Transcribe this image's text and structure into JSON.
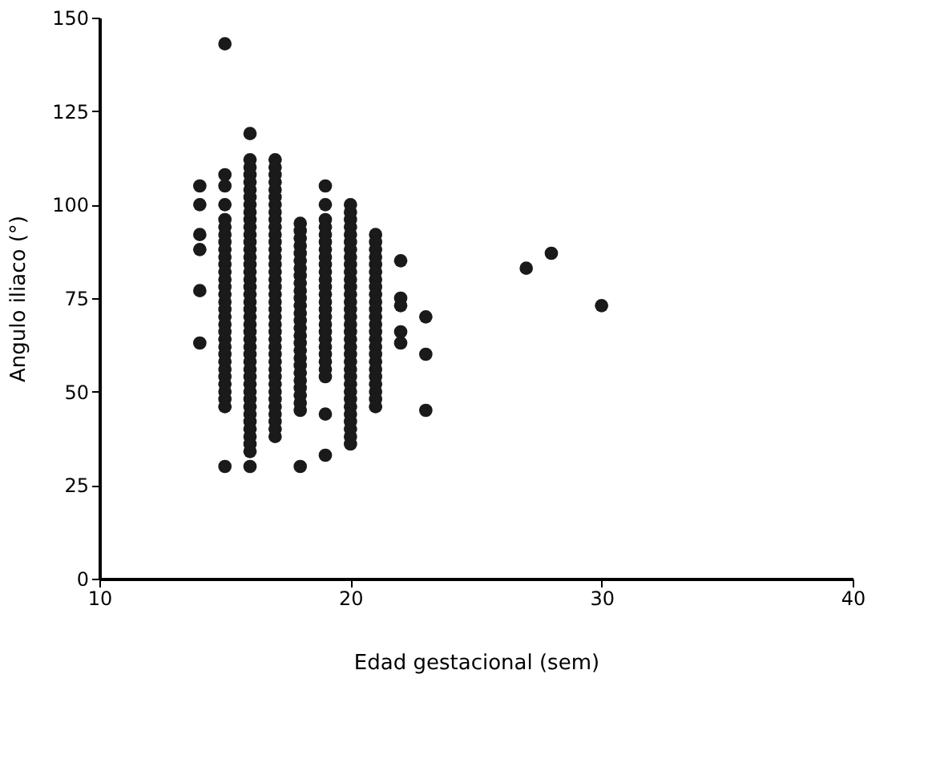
{
  "chart_data": {
    "type": "scatter",
    "xlabel": "Edad gestacional (sem)",
    "ylabel": "Angulo iliaco (°)",
    "xlim": [
      10,
      40
    ],
    "xticks": [
      10,
      20,
      30,
      40
    ],
    "ylim": [
      0,
      150
    ],
    "yticks": [
      0,
      25,
      50,
      75,
      100,
      125,
      150
    ],
    "grid": false,
    "marker": "circle",
    "series": [
      {
        "color": "#1a1a1a",
        "x": [
          14,
          14,
          14,
          14,
          14,
          14
        ],
        "values": [
          105,
          100,
          92,
          88,
          77,
          63
        ]
      },
      {
        "color": "#1a1a1a",
        "x": [
          15,
          15,
          15,
          15,
          15,
          15,
          15,
          15,
          15,
          15,
          15,
          15,
          15,
          15,
          15,
          15,
          15,
          15,
          15,
          15,
          15,
          15,
          15,
          15,
          15,
          15,
          15,
          15,
          15,
          15,
          15
        ],
        "values": [
          143,
          108,
          105,
          100,
          96,
          94,
          92,
          90,
          88,
          86,
          84,
          82,
          80,
          78,
          76,
          74,
          72,
          70,
          68,
          66,
          64,
          62,
          60,
          58,
          56,
          54,
          52,
          50,
          48,
          46,
          30
        ]
      },
      {
        "color": "#1a1a1a",
        "x": [
          16,
          16,
          16,
          16,
          16,
          16,
          16,
          16,
          16,
          16,
          16,
          16,
          16,
          16,
          16,
          16,
          16,
          16,
          16,
          16,
          16,
          16,
          16,
          16,
          16,
          16,
          16,
          16,
          16,
          16,
          16,
          16,
          16,
          16,
          16,
          16,
          16,
          16,
          16,
          16,
          16,
          16
        ],
        "values": [
          119,
          112,
          110,
          108,
          106,
          104,
          102,
          100,
          98,
          96,
          94,
          92,
          90,
          88,
          86,
          84,
          82,
          80,
          78,
          76,
          74,
          72,
          70,
          68,
          66,
          64,
          62,
          60,
          58,
          56,
          54,
          52,
          50,
          48,
          46,
          44,
          42,
          40,
          38,
          36,
          34,
          30
        ]
      },
      {
        "color": "#1a1a1a",
        "x": [
          17,
          17,
          17,
          17,
          17,
          17,
          17,
          17,
          17,
          17,
          17,
          17,
          17,
          17,
          17,
          17,
          17,
          17,
          17,
          17,
          17,
          17,
          17,
          17,
          17,
          17,
          17,
          17,
          17,
          17,
          17,
          17,
          17,
          17,
          17,
          17,
          17,
          17
        ],
        "values": [
          112,
          110,
          108,
          106,
          104,
          102,
          100,
          98,
          96,
          94,
          92,
          90,
          88,
          86,
          84,
          82,
          80,
          78,
          76,
          74,
          72,
          70,
          68,
          66,
          64,
          62,
          60,
          58,
          56,
          54,
          52,
          50,
          48,
          46,
          44,
          42,
          40,
          38
        ]
      },
      {
        "color": "#1a1a1a",
        "x": [
          18,
          18,
          18,
          18,
          18,
          18,
          18,
          18,
          18,
          18,
          18,
          18,
          18,
          18,
          18,
          18,
          18,
          18,
          18,
          18,
          18,
          18,
          18,
          18,
          18,
          18,
          18
        ],
        "values": [
          95,
          93,
          91,
          89,
          87,
          85,
          83,
          81,
          79,
          77,
          75,
          73,
          71,
          69,
          67,
          65,
          63,
          61,
          59,
          57,
          55,
          53,
          51,
          49,
          47,
          45,
          30
        ]
      },
      {
        "color": "#1a1a1a",
        "x": [
          19,
          19,
          19,
          19,
          19,
          19,
          19,
          19,
          19,
          19,
          19,
          19,
          19,
          19,
          19,
          19,
          19,
          19,
          19,
          19,
          19,
          19,
          19,
          19,
          19,
          19
        ],
        "values": [
          105,
          100,
          96,
          94,
          92,
          90,
          88,
          86,
          84,
          82,
          80,
          78,
          76,
          74,
          72,
          70,
          68,
          66,
          64,
          62,
          60,
          58,
          56,
          54,
          44,
          33
        ]
      },
      {
        "color": "#1a1a1a",
        "x": [
          20,
          20,
          20,
          20,
          20,
          20,
          20,
          20,
          20,
          20,
          20,
          20,
          20,
          20,
          20,
          20,
          20,
          20,
          20,
          20,
          20,
          20,
          20,
          20,
          20,
          20,
          20,
          20,
          20,
          20,
          20,
          20,
          20
        ],
        "values": [
          100,
          98,
          96,
          94,
          92,
          90,
          88,
          86,
          84,
          82,
          80,
          78,
          76,
          74,
          72,
          70,
          68,
          66,
          64,
          62,
          60,
          58,
          56,
          54,
          52,
          50,
          48,
          46,
          44,
          42,
          40,
          38,
          36
        ]
      },
      {
        "color": "#1a1a1a",
        "x": [
          21,
          21,
          21,
          21,
          21,
          21,
          21,
          21,
          21,
          21,
          21,
          21,
          21,
          21,
          21,
          21,
          21,
          21,
          21,
          21,
          21,
          21,
          21,
          21
        ],
        "values": [
          92,
          90,
          88,
          86,
          84,
          82,
          80,
          78,
          76,
          74,
          72,
          70,
          68,
          66,
          64,
          62,
          60,
          58,
          56,
          54,
          52,
          50,
          48,
          46
        ]
      },
      {
        "color": "#1a1a1a",
        "x": [
          22,
          22,
          22,
          22,
          22
        ],
        "values": [
          85,
          75,
          73,
          66,
          63
        ]
      },
      {
        "color": "#1a1a1a",
        "x": [
          23,
          23,
          23
        ],
        "values": [
          70,
          60,
          45
        ]
      },
      {
        "color": "#1a1a1a",
        "x": [
          27,
          28,
          30
        ],
        "values": [
          83,
          87,
          73
        ]
      }
    ]
  }
}
